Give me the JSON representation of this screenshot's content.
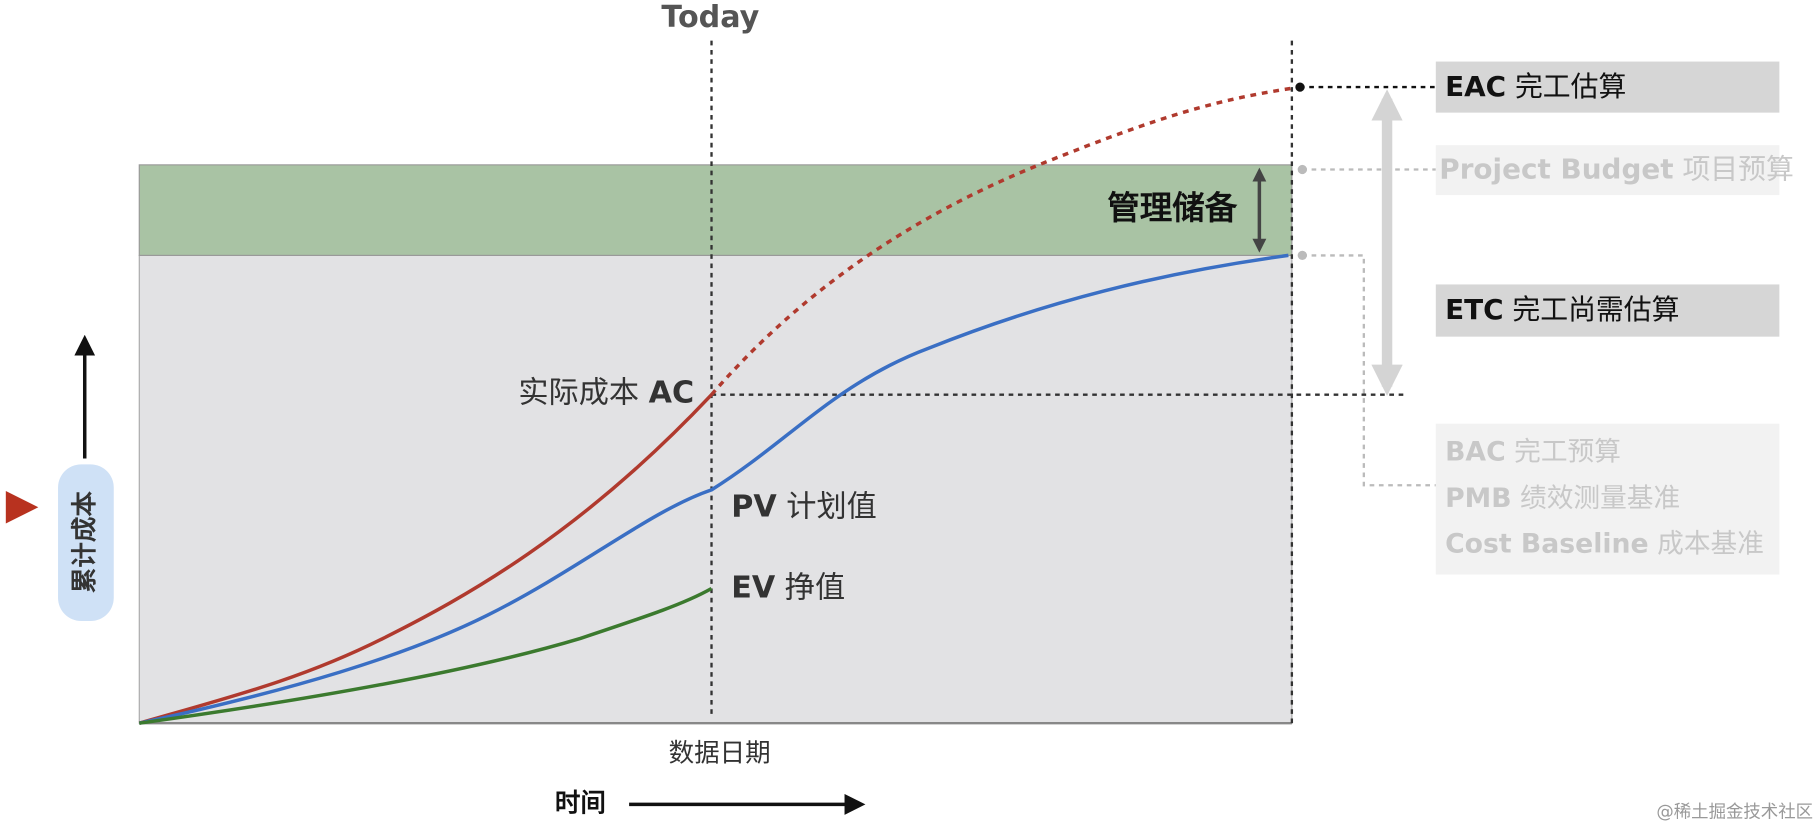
{
  "today": "Today",
  "curves": [
    {
      "abbr": "AC",
      "label": "实际成本"
    },
    {
      "abbr": "PV",
      "label": "计划值"
    },
    {
      "abbr": "EV",
      "label": "挣值"
    }
  ],
  "reserve": "管理储备",
  "axes": {
    "x_label": "数据日期",
    "x_arrow": "时间",
    "y_label": "累计成本"
  },
  "legend": [
    {
      "abbr": "EAC",
      "label": "完工估算"
    },
    {
      "abbr": "Project Budget",
      "label": "项目预算"
    },
    {
      "abbr": "ETC",
      "label": "完工尚需估算"
    }
  ],
  "baseline_box": [
    {
      "abbr": "BAC",
      "label": "完工预算"
    },
    {
      "abbr": "PMB",
      "label": "绩效测量基准"
    },
    {
      "abbr": "Cost Baseline",
      "label": "成本基准"
    }
  ],
  "watermark": "@稀土掘金技术社区"
}
